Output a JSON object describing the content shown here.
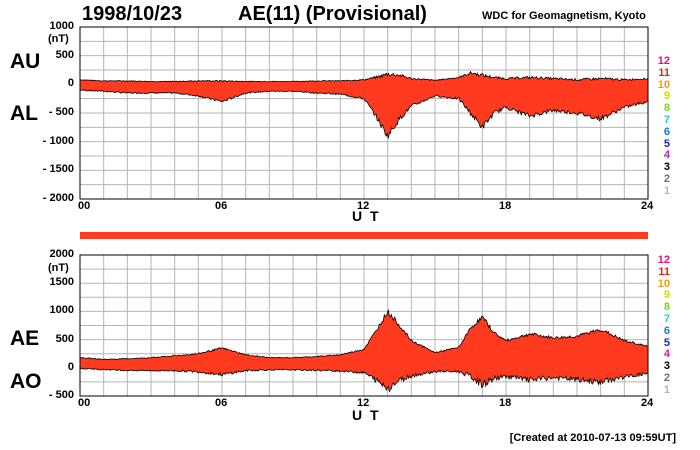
{
  "header": {
    "date": "1998/10/23",
    "title": "AE(11) (Provisional)",
    "source": "WDC for Geomagnetism, Kyoto",
    "created": "[Created at 2010-07-13 09:59UT]"
  },
  "legend_numbers": [
    "12",
    "11",
    "10",
    "9",
    "8",
    "7",
    "6",
    "5",
    "4",
    "3",
    "2",
    "1"
  ],
  "legend_colors": [
    "#e8127c",
    "#e0271c",
    "#f0a000",
    "#d8d800",
    "#78d818",
    "#20d0d0",
    "#1a78e0",
    "#2020c0",
    "#c020c0",
    "#000000",
    "#707070",
    "#b8b8b8"
  ],
  "colors": {
    "fill": "#ff3a1f",
    "outline": "#000000",
    "grid": "#b5b5b5",
    "bar": "#ff3a1f"
  },
  "chart_data": [
    {
      "type": "area",
      "panel": "AU/AL",
      "upper_label": "AU",
      "lower_label": "AL",
      "ylabel": "(nT)",
      "xlabel": "U T",
      "ylim": [
        -2000,
        1000
      ],
      "yticks": [
        1000,
        500,
        0,
        -500,
        -1000,
        -1500,
        -2000
      ],
      "ytick_labels": [
        "1000",
        "500",
        "0",
        "- 500",
        "- 1000",
        "- 1500",
        "- 2000"
      ],
      "xlim": [
        0,
        24
      ],
      "xticks": [
        0,
        6,
        12,
        18,
        24
      ],
      "xtick_labels": [
        "00",
        "06",
        "12",
        "18",
        "24"
      ],
      "series": [
        {
          "name": "AU",
          "x": [
            0,
            1,
            2,
            3,
            4,
            5,
            6,
            7,
            8,
            9,
            10,
            11,
            12,
            12.5,
            13,
            13.5,
            14,
            15,
            16,
            16.5,
            17,
            17.5,
            18,
            19,
            20,
            21,
            22,
            23,
            24
          ],
          "values": [
            80,
            60,
            60,
            50,
            50,
            60,
            60,
            50,
            50,
            50,
            60,
            60,
            80,
            120,
            180,
            160,
            100,
            70,
            120,
            200,
            160,
            120,
            100,
            120,
            100,
            80,
            100,
            80,
            100
          ]
        },
        {
          "name": "AL",
          "x": [
            0,
            1,
            2,
            3,
            4,
            5,
            6,
            7,
            8,
            9,
            10,
            11,
            12,
            12.5,
            13,
            13.5,
            14,
            15,
            16,
            16.5,
            17,
            17.5,
            18,
            19,
            20,
            21,
            22,
            23,
            24
          ],
          "values": [
            -100,
            -120,
            -150,
            -150,
            -150,
            -200,
            -300,
            -150,
            -120,
            -120,
            -150,
            -170,
            -250,
            -550,
            -900,
            -600,
            -380,
            -200,
            -250,
            -500,
            -750,
            -500,
            -400,
            -550,
            -450,
            -500,
            -600,
            -400,
            -300
          ]
        }
      ]
    },
    {
      "type": "area",
      "panel": "AE/AO",
      "upper_label": "AE",
      "lower_label": "AO",
      "ylabel": "(nT)",
      "xlabel": "U T",
      "ylim": [
        -500,
        2000
      ],
      "yticks": [
        2000,
        1500,
        1000,
        500,
        0,
        -500
      ],
      "ytick_labels": [
        "2000",
        "1500",
        "1000",
        "500",
        "0",
        "- 500"
      ],
      "xlim": [
        0,
        24
      ],
      "xticks": [
        0,
        6,
        12,
        18,
        24
      ],
      "xtick_labels": [
        "00",
        "06",
        "12",
        "18",
        "24"
      ],
      "series": [
        {
          "name": "AE",
          "x": [
            0,
            1,
            2,
            3,
            4,
            5,
            6,
            7,
            8,
            9,
            10,
            11,
            12,
            12.5,
            13,
            13.5,
            14,
            15,
            16,
            16.5,
            17,
            17.5,
            18,
            19,
            20,
            21,
            22,
            23,
            24
          ],
          "values": [
            180,
            150,
            160,
            180,
            210,
            250,
            350,
            230,
            180,
            180,
            200,
            230,
            330,
            650,
            1000,
            750,
            480,
            270,
            360,
            700,
            900,
            620,
            480,
            600,
            530,
            560,
            680,
            480,
            380
          ]
        },
        {
          "name": "AO",
          "x": [
            0,
            1,
            2,
            3,
            4,
            5,
            6,
            7,
            8,
            9,
            10,
            11,
            12,
            12.5,
            13,
            13.5,
            14,
            15,
            16,
            16.5,
            17,
            17.5,
            18,
            19,
            20,
            21,
            22,
            23,
            24
          ],
          "values": [
            -10,
            -30,
            -45,
            -50,
            -50,
            -70,
            -120,
            -50,
            -35,
            -35,
            -45,
            -55,
            -85,
            -215,
            -360,
            -220,
            -140,
            -65,
            -65,
            -150,
            -295,
            -190,
            -150,
            -215,
            -175,
            -210,
            -250,
            -160,
            -100
          ]
        }
      ]
    }
  ]
}
